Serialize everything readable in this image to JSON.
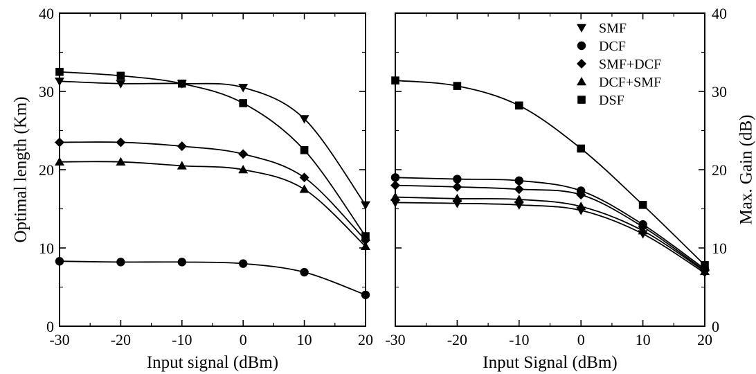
{
  "chart_data": [
    {
      "type": "line",
      "panel": "left",
      "title": "",
      "xlabel": "Input signal (dBm)",
      "ylabel": "Optimal length (Km)",
      "y_axis_side": "left",
      "x": [
        -30,
        -20,
        -10,
        0,
        10,
        20
      ],
      "xticks": [
        "-30",
        "-20",
        "-10",
        "0",
        "10",
        "20"
      ],
      "yticks": [
        "0",
        "10",
        "20",
        "30",
        "40"
      ],
      "xlim": [
        -30,
        20
      ],
      "ylim": [
        0,
        40
      ],
      "grid": false,
      "legend": false,
      "series": [
        {
          "name": "SMF",
          "marker": "triangle-down",
          "values": [
            31.3,
            31.0,
            31.0,
            30.5,
            26.5,
            15.5
          ]
        },
        {
          "name": "DCF",
          "marker": "circle",
          "values": [
            8.3,
            8.2,
            8.2,
            8.0,
            6.9,
            4.0
          ]
        },
        {
          "name": "SMF+DCF",
          "marker": "diamond",
          "values": [
            23.5,
            23.5,
            23.0,
            22.0,
            19.0,
            11.0
          ]
        },
        {
          "name": "DCF+SMF",
          "marker": "triangle-up",
          "values": [
            21.0,
            21.0,
            20.5,
            20.0,
            17.5,
            10.2
          ]
        },
        {
          "name": "DSF",
          "marker": "square",
          "values": [
            32.5,
            32.0,
            31.0,
            28.5,
            22.5,
            11.5
          ]
        }
      ]
    },
    {
      "type": "line",
      "panel": "right",
      "title": "",
      "xlabel": "Input Signal (dBm)",
      "ylabel": "Max. Gain (dB)",
      "y_axis_side": "right",
      "x": [
        -30,
        -20,
        -10,
        0,
        10,
        20
      ],
      "xticks": [
        "-30",
        "-20",
        "-10",
        "0",
        "10",
        "20"
      ],
      "yticks": [
        "0",
        "10",
        "20",
        "30",
        "40"
      ],
      "xlim": [
        -30,
        20
      ],
      "ylim": [
        0,
        40
      ],
      "grid": false,
      "legend": "top-right",
      "series": [
        {
          "name": "SMF",
          "marker": "triangle-down",
          "values": [
            15.8,
            15.7,
            15.5,
            14.8,
            11.8,
            6.8
          ]
        },
        {
          "name": "DCF",
          "marker": "circle",
          "values": [
            19.0,
            18.8,
            18.6,
            17.3,
            13.0,
            7.3
          ]
        },
        {
          "name": "SMF+DCF",
          "marker": "diamond",
          "values": [
            18.0,
            17.8,
            17.5,
            16.8,
            12.7,
            7.1
          ]
        },
        {
          "name": "DCF+SMF",
          "marker": "triangle-up",
          "values": [
            16.5,
            16.3,
            16.2,
            15.3,
            12.2,
            7.0
          ]
        },
        {
          "name": "DSF",
          "marker": "square",
          "values": [
            31.4,
            30.7,
            28.2,
            22.7,
            15.5,
            7.8
          ]
        }
      ]
    }
  ]
}
